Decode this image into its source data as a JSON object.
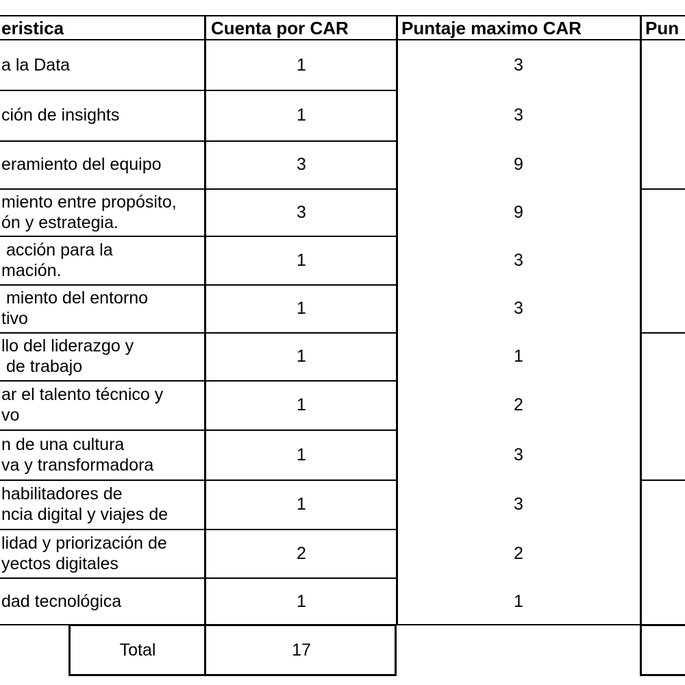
{
  "headers": {
    "caracteristica": "eristica",
    "cuenta": "Cuenta por CAR",
    "puntaje_maximo": "Puntaje maximo CAR",
    "puntaje": "Pun"
  },
  "rows": [
    {
      "lines": [
        "a la Data"
      ],
      "cuenta": "1",
      "max": "3"
    },
    {
      "lines": [
        "ción de insights"
      ],
      "cuenta": "1",
      "max": "3"
    },
    {
      "lines": [
        "eramiento del equipo"
      ],
      "cuenta": "3",
      "max": "9"
    },
    {
      "lines": [
        "miento entre propósito,",
        "ón y estrategia."
      ],
      "cuenta": "3",
      "max": "9"
    },
    {
      "lines": [
        " acción para la",
        "mación."
      ],
      "cuenta": "1",
      "max": "3"
    },
    {
      "lines": [
        " miento del entorno",
        "tivo"
      ],
      "cuenta": "1",
      "max": "3"
    },
    {
      "lines": [
        "llo del liderazgo y",
        " de trabajo"
      ],
      "cuenta": "1",
      "max": "1"
    },
    {
      "lines": [
        "ar el talento técnico y",
        "vo"
      ],
      "cuenta": "1",
      "max": "2"
    },
    {
      "lines": [
        "n de una cultura",
        "va y transformadora"
      ],
      "cuenta": "1",
      "max": "3"
    },
    {
      "lines": [
        "habilitadores de",
        "ncia digital y viajes de"
      ],
      "cuenta": "1",
      "max": "3"
    },
    {
      "lines": [
        "lidad y priorización de",
        "yectos digitales"
      ],
      "cuenta": "2",
      "max": "2"
    },
    {
      "lines": [
        "dad tecnológica"
      ],
      "cuenta": "1",
      "max": "1"
    }
  ],
  "total": {
    "label": "Total",
    "value": "17"
  }
}
